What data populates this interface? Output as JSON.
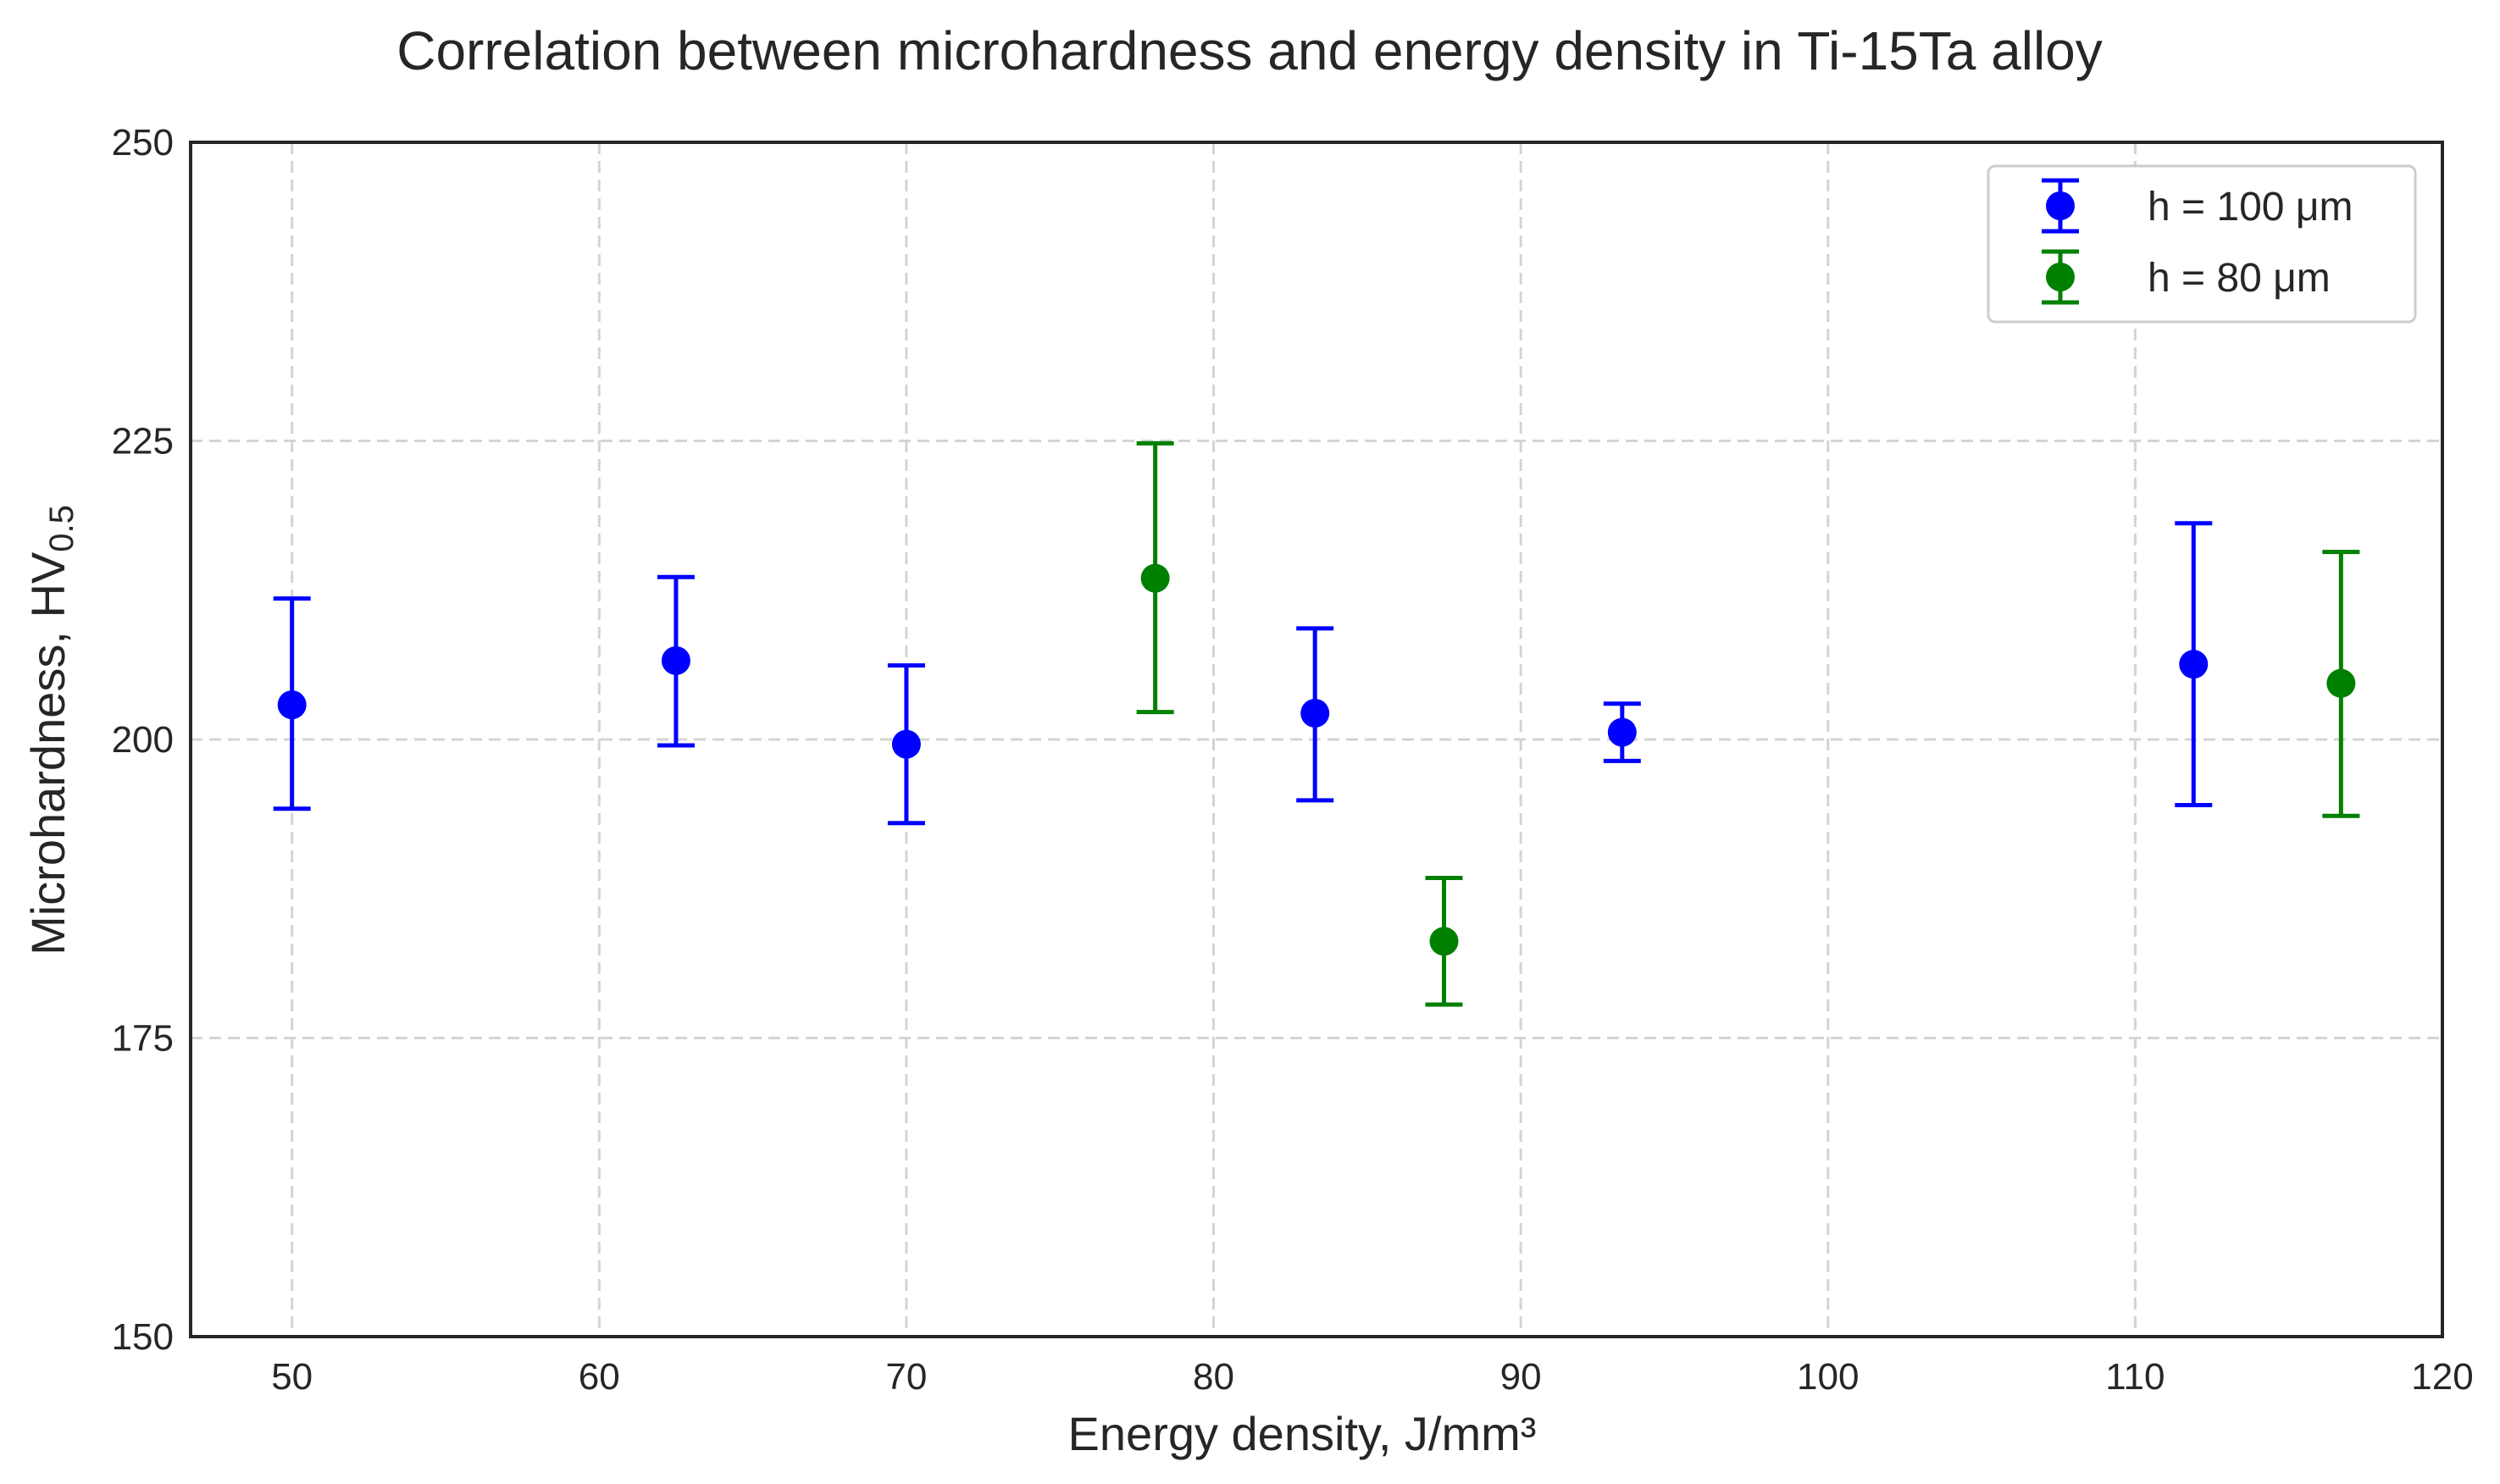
{
  "chart_data": {
    "type": "scatter",
    "title": "Correlation between microhardness and energy density in Ti-15Ta alloy",
    "xlabel": "Energy density, J/mm³",
    "ylabel_main": "Microhardness, HV",
    "ylabel_sub": "0.5",
    "xlim": [
      46.7,
      120
    ],
    "ylim": [
      150,
      250
    ],
    "xticks": [
      50,
      60,
      70,
      80,
      90,
      100,
      110,
      120
    ],
    "yticks": [
      150,
      175,
      200,
      225,
      250
    ],
    "grid": true,
    "legend_position": "top-right",
    "series": [
      {
        "name": "h = 100 μm",
        "color": "#0000ff",
        "points": [
          {
            "x": 50.0,
            "y": 202.9,
            "yerr_low": 194.2,
            "yerr_high": 211.8
          },
          {
            "x": 62.5,
            "y": 206.6,
            "yerr_low": 199.5,
            "yerr_high": 213.6
          },
          {
            "x": 70.0,
            "y": 199.6,
            "yerr_low": 193.0,
            "yerr_high": 206.2
          },
          {
            "x": 83.3,
            "y": 202.2,
            "yerr_low": 194.9,
            "yerr_high": 209.3
          },
          {
            "x": 93.3,
            "y": 200.6,
            "yerr_low": 198.2,
            "yerr_high": 203.0
          },
          {
            "x": 111.9,
            "y": 206.3,
            "yerr_low": 194.5,
            "yerr_high": 218.1
          }
        ]
      },
      {
        "name": "h = 80 μm",
        "color": "#008000",
        "points": [
          {
            "x": 78.1,
            "y": 213.5,
            "yerr_low": 202.3,
            "yerr_high": 224.8
          },
          {
            "x": 87.5,
            "y": 183.1,
            "yerr_low": 177.8,
            "yerr_high": 188.4
          },
          {
            "x": 116.7,
            "y": 204.7,
            "yerr_low": 193.6,
            "yerr_high": 215.7
          }
        ]
      }
    ]
  }
}
